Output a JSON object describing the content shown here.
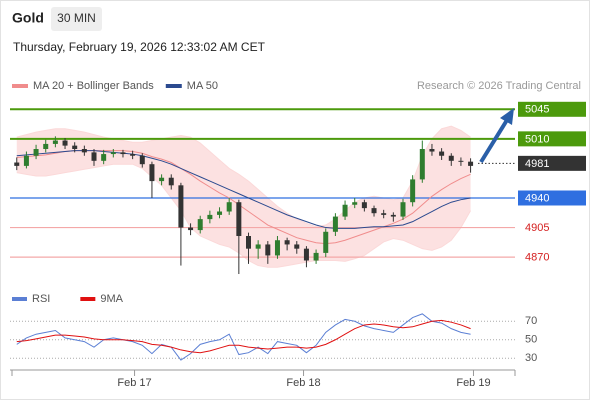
{
  "header": {
    "title": "Gold",
    "timeframe": "30 MIN",
    "timestamp": "Thursday, February 19, 2026 12:33:02 AM CET"
  },
  "chart_data": [
    {
      "type": "candlestick",
      "credit": "Research © 2026 Trading Central",
      "xlim": [
        -0.7,
        51.6
      ],
      "ylim": [
        4837,
        5056
      ],
      "up_color": "#2f7d2f",
      "down_color": "#333333",
      "open": [
        4982,
        4978,
        4990,
        4998,
        5004,
        5008,
        5002,
        4998,
        4994,
        4984,
        4992,
        4994,
        4992,
        4990,
        4980,
        4960,
        4964,
        4955,
        4905,
        4902,
        4915,
        4920,
        4924,
        4935,
        4895,
        4880,
        4885,
        4872,
        4890,
        4885,
        4880,
        4866,
        4875,
        4900,
        4918,
        4932,
        4935,
        4928,
        4922,
        4920,
        4918,
        4935,
        4962,
        4998,
        4995,
        4990,
        4984,
        4983
      ],
      "high": [
        4988,
        4995,
        5003,
        5009,
        5013,
        5011,
        5006,
        5002,
        4998,
        4997,
        4998,
        4997,
        4996,
        4993,
        4983,
        4968,
        4968,
        4958,
        4910,
        4919,
        4925,
        4929,
        4940,
        4938,
        4899,
        4890,
        4889,
        4895,
        4893,
        4889,
        4883,
        4879,
        4904,
        4922,
        4937,
        4940,
        4938,
        4931,
        4926,
        4923,
        4939,
        4967,
        5008,
        5004,
        4999,
        4993,
        4988,
        4987
      ],
      "low": [
        4973,
        4975,
        4986,
        4994,
        5000,
        4998,
        4994,
        4990,
        4978,
        4980,
        4988,
        4988,
        4986,
        4976,
        4940,
        4955,
        4950,
        4860,
        4896,
        4898,
        4910,
        4916,
        4920,
        4850,
        4862,
        4868,
        4862,
        4868,
        4878,
        4874,
        4858,
        4862,
        4870,
        4895,
        4914,
        4928,
        4924,
        4918,
        4916,
        4912,
        4914,
        4930,
        4958,
        4990,
        4985,
        4978,
        4978,
        4970
      ],
      "close": [
        4978,
        4990,
        4998,
        5004,
        5008,
        5002,
        4998,
        4994,
        4984,
        4992,
        4994,
        4992,
        4990,
        4980,
        4960,
        4964,
        4955,
        4905,
        4902,
        4915,
        4920,
        4924,
        4935,
        4895,
        4880,
        4885,
        4872,
        4890,
        4885,
        4880,
        4866,
        4875,
        4900,
        4918,
        4932,
        4935,
        4928,
        4922,
        4920,
        4918,
        4935,
        4962,
        4998,
        4995,
        4990,
        4984,
        4983,
        4978
      ],
      "series": [
        {
          "name": "MA 20 + Bollinger Bands",
          "color": "#f08c8c",
          "band_color": "#fbd9d9",
          "values": [
            4988,
            4989,
            4990,
            4991,
            4993,
            4995,
            4996,
            4996,
            4996,
            4996,
            4996,
            4996,
            4995,
            4993,
            4989,
            4986,
            4982,
            4975,
            4968,
            4960,
            4953,
            4946,
            4940,
            4932,
            4924,
            4916,
            4908,
            4903,
            4898,
            4893,
            4890,
            4887,
            4886,
            4887,
            4890,
            4894,
            4898,
            4902,
            4906,
            4910,
            4915,
            4922,
            4932,
            4942,
            4950,
            4957,
            4963,
            4968
          ],
          "upper": [
            5012,
            5015,
            5018,
            5020,
            5022,
            5022,
            5020,
            5018,
            5015,
            5012,
            5010,
            5008,
            5006,
            5006,
            5008,
            5010,
            5012,
            5014,
            5012,
            5005,
            4995,
            4985,
            4975,
            4968,
            4960,
            4950,
            4940,
            4930,
            4922,
            4915,
            4910,
            4906,
            4908,
            4915,
            4925,
            4935,
            4940,
            4942,
            4940,
            4938,
            4940,
            4960,
            4990,
            5010,
            5022,
            5025,
            5020,
            5012
          ],
          "lower": [
            4970,
            4968,
            4966,
            4966,
            4968,
            4970,
            4972,
            4974,
            4976,
            4978,
            4980,
            4980,
            4980,
            4975,
            4965,
            4955,
            4940,
            4925,
            4905,
            4895,
            4890,
            4885,
            4882,
            4875,
            4866,
            4860,
            4858,
            4858,
            4860,
            4862,
            4864,
            4866,
            4866,
            4866,
            4865,
            4868,
            4872,
            4880,
            4888,
            4892,
            4890,
            4885,
            4880,
            4878,
            4882,
            4890,
            4905,
            4925
          ]
        },
        {
          "name": "MA 50",
          "color": "#2b4a8f",
          "values": [
            4990,
            4991,
            4992,
            4993,
            4994,
            4995,
            4996,
            4996,
            4996,
            4995,
            4994,
            4993,
            4992,
            4990,
            4987,
            4984,
            4980,
            4975,
            4970,
            4965,
            4960,
            4955,
            4950,
            4945,
            4940,
            4935,
            4930,
            4925,
            4920,
            4916,
            4912,
            4908,
            4905,
            4904,
            4904,
            4904,
            4905,
            4906,
            4906,
            4907,
            4908,
            4912,
            4918,
            4924,
            4930,
            4935,
            4938,
            4940
          ]
        }
      ],
      "levels": [
        {
          "value": 5045,
          "color": "#4c9a0c",
          "line": "solid",
          "box": true
        },
        {
          "value": 5010,
          "color": "#4c9a0c",
          "line": "solid",
          "box": true
        },
        {
          "value": 4981,
          "color": "#333333",
          "line": "dotted",
          "box": true
        },
        {
          "value": 4940,
          "color": "#2f6fe0",
          "line": "solid",
          "box": true
        },
        {
          "value": 4905,
          "color": "#d42020",
          "line": "solid",
          "box": false
        },
        {
          "value": 4870,
          "color": "#d42020",
          "line": "solid",
          "box": false
        }
      ]
    },
    {
      "type": "line",
      "xlim": [
        -0.7,
        51.6
      ],
      "ylim": [
        20,
        80
      ],
      "yticks": [
        30,
        50,
        70
      ],
      "xticks": [
        {
          "value": 12.2,
          "label": "Feb 17"
        },
        {
          "value": 29.7,
          "label": "Feb 18"
        },
        {
          "value": 47.3,
          "label": "Feb 19"
        }
      ],
      "series": [
        {
          "name": "RSI",
          "color": "#5b7fd4",
          "values": [
            45,
            52,
            56,
            58,
            60,
            52,
            50,
            48,
            42,
            50,
            52,
            50,
            48,
            44,
            35,
            45,
            42,
            28,
            35,
            45,
            48,
            50,
            56,
            34,
            36,
            42,
            35,
            48,
            46,
            44,
            36,
            44,
            58,
            66,
            72,
            70,
            65,
            62,
            60,
            58,
            66,
            74,
            78,
            70,
            68,
            62,
            58,
            56
          ]
        },
        {
          "name": "9MA",
          "color": "#e01010",
          "values": [
            48,
            49,
            51,
            53,
            55,
            55,
            54,
            53,
            51,
            50,
            50,
            50,
            49,
            48,
            45,
            44,
            42,
            39,
            37,
            36,
            38,
            41,
            44,
            44,
            42,
            41,
            40,
            41,
            42,
            42,
            41,
            42,
            45,
            50,
            56,
            62,
            66,
            67,
            66,
            64,
            63,
            64,
            67,
            70,
            71,
            69,
            66,
            62
          ]
        }
      ]
    }
  ]
}
